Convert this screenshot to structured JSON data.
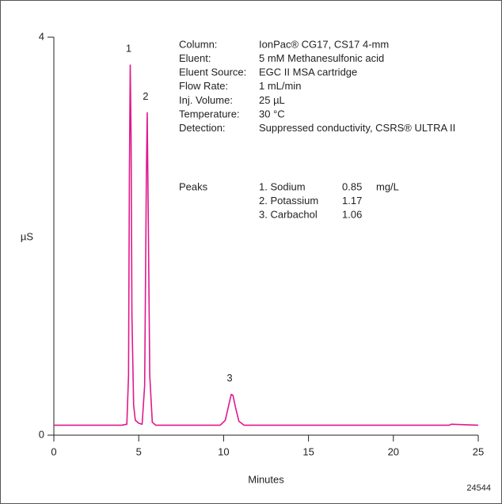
{
  "chart_data": {
    "type": "line",
    "x_label": "Minutes",
    "y_label": "µS",
    "figure_number": "24544",
    "xlim": [
      0,
      25
    ],
    "xticks": [
      0,
      5,
      10,
      15,
      20,
      25
    ],
    "ylim": [
      0,
      4
    ],
    "yticks": [
      0,
      4
    ],
    "peak_labels": [
      "1",
      "2",
      "3"
    ],
    "series": [
      {
        "color": "#e0198c",
        "x": [
          0,
          2,
          4.0,
          4.3,
          4.4,
          4.45,
          4.5,
          4.55,
          4.6,
          4.7,
          4.8,
          5.0,
          5.2,
          5.35,
          5.45,
          5.5,
          5.55,
          5.65,
          5.8,
          6.0,
          8,
          9.8,
          10.1,
          10.3,
          10.45,
          10.55,
          10.7,
          10.9,
          11.2,
          12,
          15,
          20,
          23.3,
          23.4,
          25
        ],
        "values": [
          0.1,
          0.1,
          0.1,
          0.11,
          0.6,
          2.6,
          3.72,
          3.0,
          1.2,
          0.3,
          0.15,
          0.12,
          0.11,
          0.5,
          2.6,
          3.24,
          2.4,
          0.6,
          0.13,
          0.1,
          0.1,
          0.1,
          0.15,
          0.3,
          0.41,
          0.4,
          0.28,
          0.14,
          0.1,
          0.1,
          0.1,
          0.1,
          0.1,
          0.11,
          0.1
        ]
      }
    ],
    "conditions": [
      [
        "Column:",
        "IonPac® CG17, CS17 4-mm"
      ],
      [
        "Eluent:",
        "5 mM Methanesulfonic acid"
      ],
      [
        "Eluent Source:",
        "EGC II MSA cartridge"
      ],
      [
        "Flow Rate:",
        "1 mL/min"
      ],
      [
        "Inj. Volume:",
        "25 µL"
      ],
      [
        "Temperature:",
        "30 °C"
      ],
      [
        "Detection:",
        "Suppressed conductivity, CSRS® ULTRA II"
      ]
    ],
    "peaks": {
      "label": "Peaks",
      "rows": [
        [
          "1. Sodium",
          "0.85",
          "mg/L"
        ],
        [
          "2. Potassium",
          "1.17"
        ],
        [
          "3. Carbachol",
          "1.06"
        ]
      ]
    }
  }
}
